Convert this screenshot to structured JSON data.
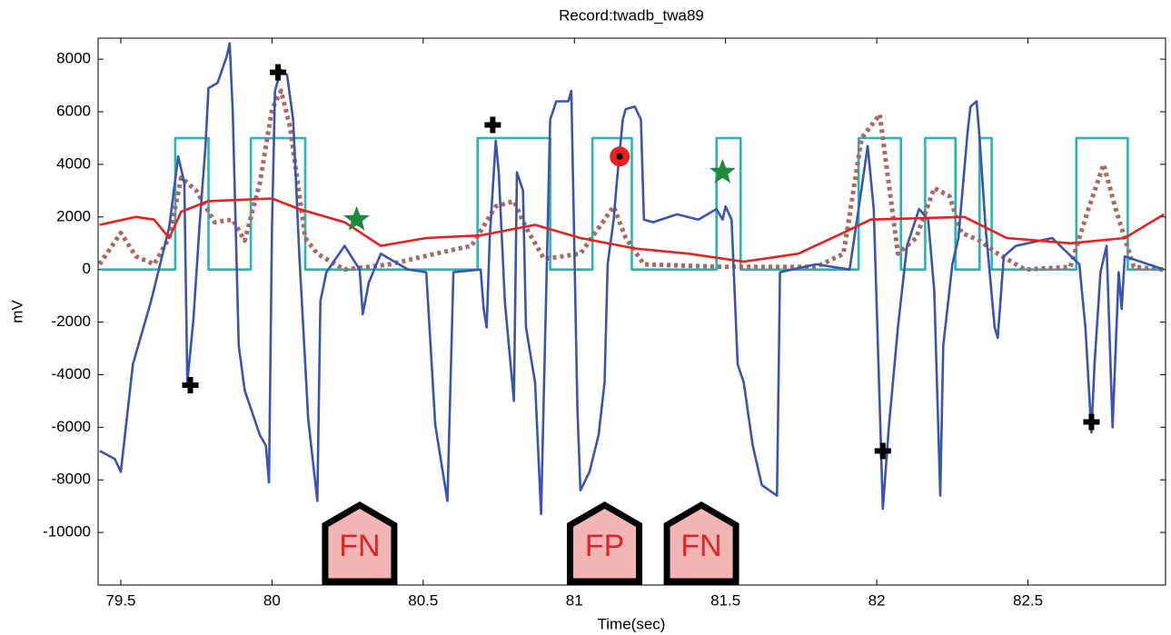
{
  "chart_data": {
    "type": "line",
    "title": "Record:twadb_twa89",
    "xlabel": "Time(sec)",
    "ylabel": "mV",
    "xlim": [
      79.425,
      82.955
    ],
    "ylim": [
      -12000,
      8800
    ],
    "xticks": [
      79.5,
      80,
      80.5,
      81,
      81.5,
      82,
      82.5
    ],
    "yticks": [
      -10000,
      -8000,
      -6000,
      -4000,
      -2000,
      0,
      2000,
      4000,
      6000,
      8000
    ],
    "grid": false,
    "series": [
      {
        "color": "#2ab5b5",
        "style": "solid",
        "x": [
          79.43,
          79.68,
          79.68,
          79.79,
          79.79,
          79.93,
          79.93,
          80.11,
          80.11,
          80.68,
          80.68,
          80.92,
          80.92,
          81.06,
          81.06,
          81.19,
          81.19,
          81.47,
          81.47,
          81.55,
          81.55,
          81.94,
          81.94,
          82.08,
          82.08,
          82.16,
          82.16,
          82.26,
          82.26,
          82.34,
          82.34,
          82.38,
          82.38,
          82.66,
          82.66,
          82.83,
          82.83,
          82.95
        ],
        "values": [
          0,
          0,
          5000,
          5000,
          0,
          0,
          5000,
          5000,
          0,
          0,
          5000,
          5000,
          0,
          0,
          5000,
          5000,
          0,
          0,
          5000,
          5000,
          0,
          0,
          5000,
          5000,
          0,
          0,
          5000,
          5000,
          0,
          0,
          5000,
          5000,
          0,
          0,
          5000,
          5000,
          0,
          0
        ]
      },
      {
        "color": "#a86a64",
        "style": "dotted",
        "x": [
          79.43,
          79.5,
          79.55,
          79.61,
          79.66,
          79.7,
          79.75,
          79.81,
          79.87,
          79.91,
          79.96,
          80.0,
          80.03,
          80.06,
          80.11,
          80.15,
          80.24,
          80.39,
          80.54,
          80.66,
          80.74,
          80.8,
          80.84,
          80.9,
          81.02,
          81.1,
          81.13,
          81.17,
          81.23,
          81.5,
          81.8,
          81.89,
          81.95,
          82.01,
          82.07,
          82.13,
          82.19,
          82.24,
          82.28,
          82.34,
          82.4,
          82.49,
          82.64,
          82.7,
          82.75,
          82.79,
          82.85,
          82.95
        ],
        "values": [
          200,
          1400,
          500,
          200,
          1200,
          3500,
          3000,
          1800,
          1900,
          1100,
          3300,
          6100,
          6800,
          5400,
          1200,
          600,
          0,
          200,
          600,
          900,
          2400,
          2600,
          1600,
          400,
          600,
          1900,
          2400,
          1200,
          200,
          100,
          100,
          600,
          5000,
          5900,
          600,
          1200,
          3100,
          2800,
          1400,
          1100,
          600,
          0,
          100,
          2300,
          4000,
          2300,
          100,
          0
        ]
      },
      {
        "color": "#3b54b0",
        "style": "solid",
        "x": [
          79.43,
          79.48,
          79.5,
          79.54,
          79.6,
          79.66,
          79.69,
          79.71,
          79.72,
          79.74,
          79.76,
          79.78,
          79.79,
          79.82,
          79.85,
          79.86,
          79.87,
          79.89,
          79.91,
          79.96,
          79.98,
          79.99,
          80.0,
          80.01,
          80.03,
          80.05,
          80.07,
          80.09,
          80.12,
          80.15,
          80.16,
          80.18,
          80.24,
          80.29,
          80.3,
          80.32,
          80.36,
          80.45,
          80.51,
          80.54,
          80.58,
          80.6,
          80.69,
          80.7,
          80.71,
          80.72,
          80.74,
          80.75,
          80.77,
          80.8,
          80.81,
          80.83,
          80.84,
          80.87,
          80.89,
          80.92,
          80.94,
          80.98,
          80.99,
          81.01,
          81.02,
          81.05,
          81.08,
          81.1,
          81.11,
          81.13,
          81.14,
          81.16,
          81.17,
          81.2,
          81.22,
          81.23,
          81.26,
          81.34,
          81.41,
          81.47,
          81.49,
          81.5,
          81.52,
          81.54,
          81.56,
          81.59,
          81.62,
          81.67,
          81.68,
          81.8,
          81.91,
          81.94,
          81.97,
          81.99,
          82.02,
          82.04,
          82.07,
          82.1,
          82.14,
          82.17,
          82.19,
          82.21,
          82.22,
          82.25,
          82.27,
          82.3,
          82.31,
          82.33,
          82.34,
          82.36,
          82.39,
          82.4,
          82.42,
          82.46,
          82.58,
          82.67,
          82.69,
          82.71,
          82.72,
          82.74,
          82.76,
          82.78,
          82.8,
          82.81,
          82.82,
          82.95
        ],
        "values": [
          -6900,
          -7200,
          -7700,
          -3600,
          -1200,
          1600,
          4300,
          3300,
          -4300,
          -1900,
          1600,
          4700,
          6900,
          7100,
          8100,
          8600,
          6100,
          -2900,
          -4600,
          -6300,
          -6700,
          -8100,
          1600,
          6800,
          7600,
          7400,
          5700,
          600,
          -5700,
          -8800,
          -1200,
          -100,
          900,
          0,
          -1700,
          -500,
          600,
          0,
          -100,
          -5900,
          -8800,
          -100,
          0,
          -1500,
          -2200,
          1200,
          4900,
          3700,
          -1200,
          -5000,
          3700,
          3000,
          -2200,
          -4300,
          -9300,
          5700,
          6400,
          6400,
          6800,
          -5300,
          -8400,
          -7700,
          -6300,
          -4300,
          200,
          1900,
          3300,
          5700,
          6100,
          6200,
          5700,
          1900,
          1800,
          2100,
          1900,
          2300,
          1900,
          2400,
          1900,
          -3600,
          -4300,
          -6700,
          -8200,
          -8600,
          -100,
          200,
          0,
          2300,
          4700,
          2300,
          -9100,
          -6000,
          -2200,
          900,
          2300,
          1900,
          -800,
          -8600,
          -2900,
          200,
          1200,
          5200,
          6200,
          6400,
          5000,
          1600,
          -2200,
          -2600,
          500,
          900,
          1200,
          200,
          -2200,
          -6200,
          -3600,
          -100,
          900,
          -6000,
          -100,
          -1500,
          500,
          0
        ]
      },
      {
        "color": "#e8201f",
        "style": "solid",
        "x": [
          79.43,
          79.55,
          79.61,
          79.66,
          79.7,
          79.79,
          80.0,
          80.09,
          80.24,
          80.36,
          80.51,
          80.69,
          80.87,
          81.02,
          81.2,
          81.38,
          81.56,
          81.74,
          81.89,
          81.98,
          82.29,
          82.43,
          82.64,
          82.82,
          82.95
        ],
        "values": [
          1700,
          2000,
          1900,
          1200,
          2200,
          2600,
          2700,
          2300,
          1800,
          900,
          1200,
          1300,
          1700,
          1200,
          800,
          600,
          300,
          600,
          1400,
          1900,
          2000,
          1200,
          1000,
          1200,
          2100
        ]
      }
    ],
    "markers": [
      {
        "shape": "cross",
        "color": "#000000",
        "x": [
          79.73,
          80.02,
          80.73,
          82.02,
          82.71
        ],
        "values": [
          -4400,
          7500,
          5500,
          -6900,
          -5800
        ]
      },
      {
        "shape": "star",
        "color": "#1f8a3a",
        "x": [
          80.28,
          81.49
        ],
        "values": [
          1900,
          3700
        ]
      },
      {
        "shape": "circle",
        "color": "#e8201f",
        "x": [
          81.15
        ],
        "values": [
          4300
        ]
      }
    ],
    "annotations": [
      {
        "text": "FN",
        "x": 80.29
      },
      {
        "text": "FP",
        "x": 81.1
      },
      {
        "text": "FN",
        "x": 81.42
      }
    ]
  }
}
